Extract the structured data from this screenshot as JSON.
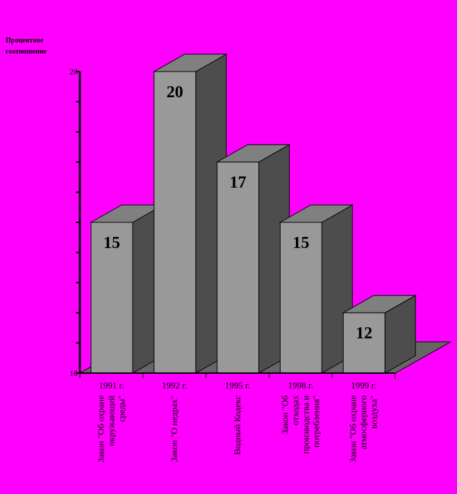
{
  "chart_data": {
    "type": "bar",
    "ylabel": "Процентное соотношение",
    "ylabel_lines": [
      "Процентное",
      "соотношение"
    ],
    "ylim": [
      10,
      20
    ],
    "y_tick_labels": [
      "10",
      "20"
    ],
    "categories": [
      "1991 г.",
      "1992 г.",
      "1995 г.",
      "1998 г.",
      "1999 г."
    ],
    "values": [
      15,
      20,
      17,
      15,
      12
    ],
    "laws": [
      [
        "Закон \"Об охране",
        "окружающей",
        "среды\""
      ],
      [
        "Закон \"О недрах\""
      ],
      [
        "Водный Кодекс"
      ],
      [
        "Закон \"Об",
        "отходах",
        "производства и",
        "потребления\""
      ],
      [
        "Закон \"Об охране",
        "атмосферного",
        "воздуха\""
      ]
    ],
    "grid": false,
    "legend": "none",
    "style": "3d-column",
    "colors": {
      "background": "#ff00ff",
      "bar_front": "#999999",
      "bar_top": "#808080",
      "bar_side": "#4d4d4d",
      "floor": "#666666",
      "axis": "#000000"
    }
  }
}
